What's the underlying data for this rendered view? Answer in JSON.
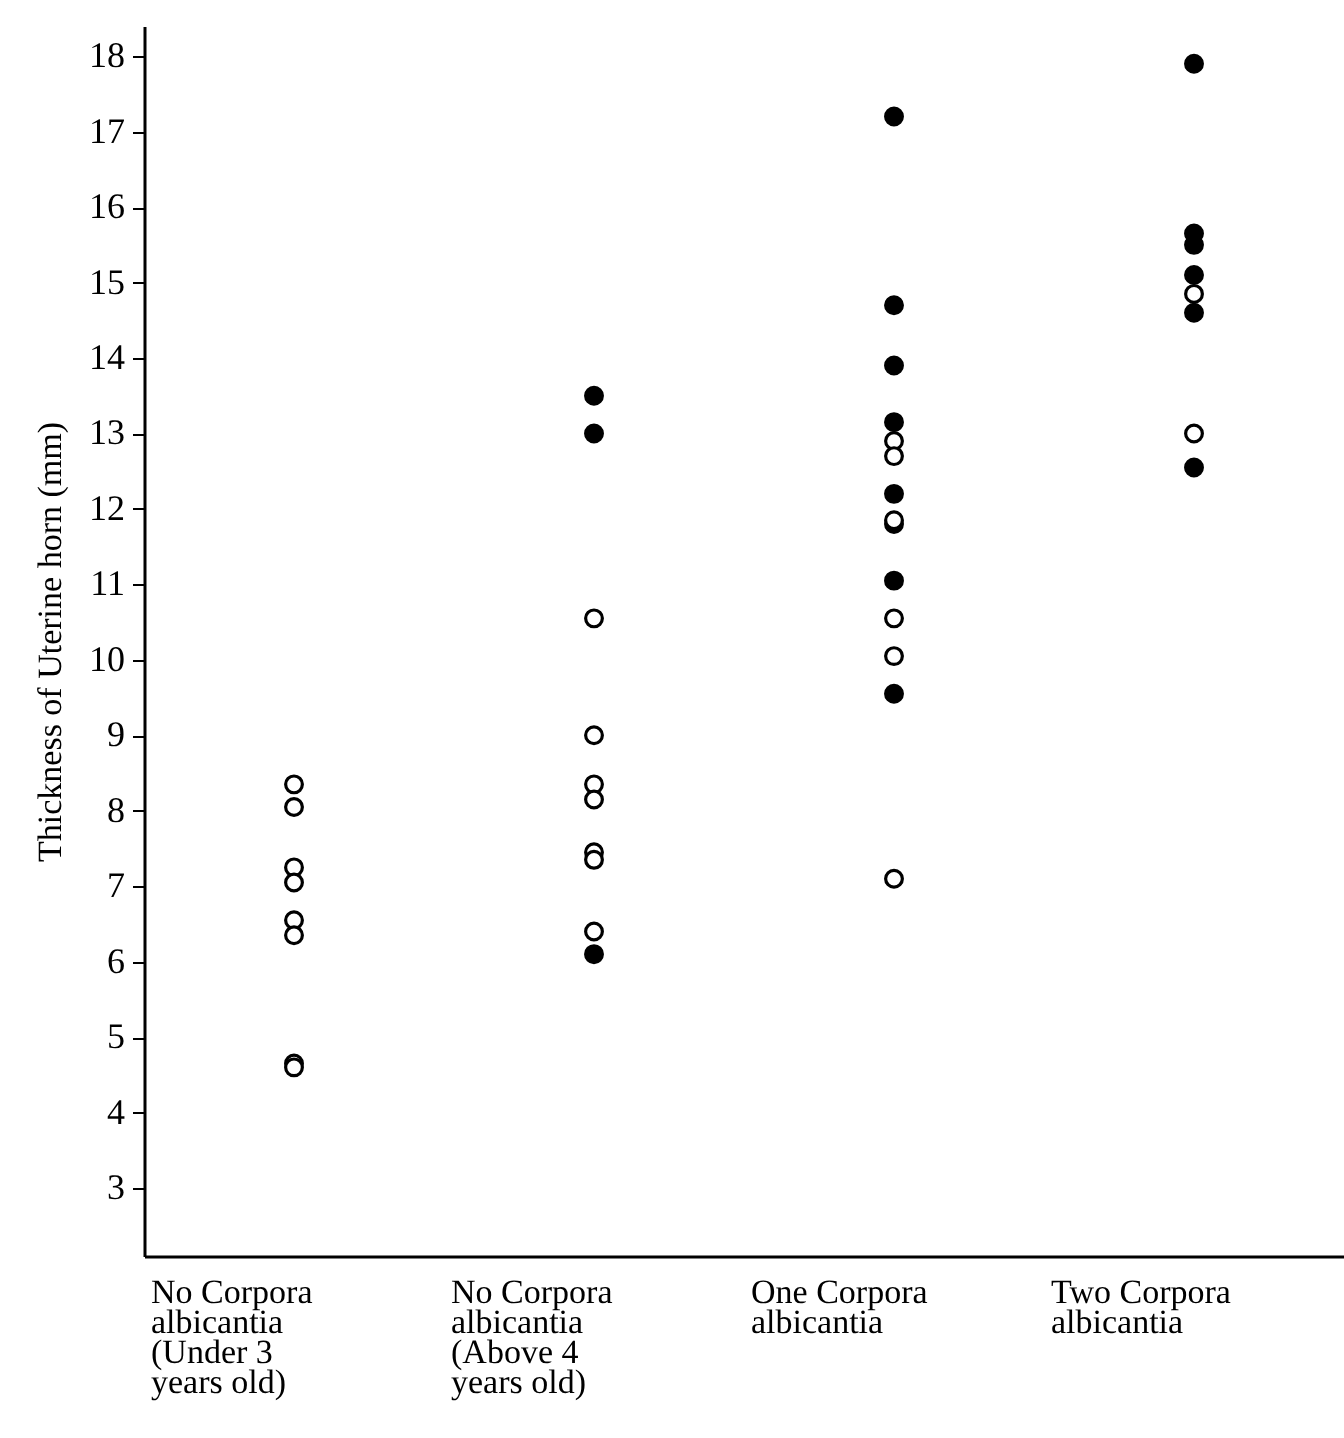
{
  "chart_data": {
    "type": "scatter",
    "ylabel": "Thickness of Uterine horn (mm)",
    "categories": [
      "No Corpora\nalbicantia\n(Under 3\nyears old)",
      "No Corpora\nalbicantia\n(Above 4\nyears old)",
      "One Corpora\nalbicantia",
      "Two Corpora\nalbicantia"
    ],
    "ylim": [
      2.1,
      18.4
    ],
    "yticks": [
      3,
      4,
      5,
      6,
      7,
      8,
      9,
      10,
      11,
      12,
      13,
      14,
      15,
      16,
      17,
      18
    ],
    "grid": false,
    "marker": "circle",
    "series": [
      {
        "color": "#000000",
        "x": [
          "No Corpora\nalbicantia\n(Above 4\nyears old)",
          "No Corpora\nalbicantia\n(Above 4\nyears old)",
          "No Corpora\nalbicantia\n(Above 4\nyears old)",
          "One Corpora\nalbicantia",
          "One Corpora\nalbicantia",
          "One Corpora\nalbicantia",
          "One Corpora\nalbicantia",
          "One Corpora\nalbicantia",
          "One Corpora\nalbicantia",
          "One Corpora\nalbicantia",
          "One Corpora\nalbicantia",
          "Two Corpora\nalbicantia",
          "Two Corpora\nalbicantia",
          "Two Corpora\nalbicantia",
          "Two Corpora\nalbicantia",
          "Two Corpora\nalbicantia",
          "Two Corpora\nalbicantia"
        ],
        "values": [
          13.5,
          13.0,
          6.1,
          17.2,
          14.7,
          13.9,
          13.15,
          12.2,
          11.8,
          11.05,
          9.55,
          17.9,
          15.65,
          15.5,
          15.1,
          14.6,
          12.55
        ]
      },
      {
        "color": "#ffffff",
        "x": [
          "No Corpora\nalbicantia\n(Under 3\nyears old)",
          "No Corpora\nalbicantia\n(Under 3\nyears old)",
          "No Corpora\nalbicantia\n(Under 3\nyears old)",
          "No Corpora\nalbicantia\n(Under 3\nyears old)",
          "No Corpora\nalbicantia\n(Under 3\nyears old)",
          "No Corpora\nalbicantia\n(Under 3\nyears old)",
          "No Corpora\nalbicantia\n(Under 3\nyears old)",
          "No Corpora\nalbicantia\n(Under 3\nyears old)",
          "No Corpora\nalbicantia\n(Above 4\nyears old)",
          "No Corpora\nalbicantia\n(Above 4\nyears old)",
          "No Corpora\nalbicantia\n(Above 4\nyears old)",
          "No Corpora\nalbicantia\n(Above 4\nyears old)",
          "No Corpora\nalbicantia\n(Above 4\nyears old)",
          "No Corpora\nalbicantia\n(Above 4\nyears old)",
          "No Corpora\nalbicantia\n(Above 4\nyears old)",
          "One Corpora\nalbicantia",
          "One Corpora\nalbicantia",
          "One Corpora\nalbicantia",
          "One Corpora\nalbicantia",
          "One Corpora\nalbicantia",
          "One Corpora\nalbicantia",
          "Two Corpora\nalbicantia",
          "Two Corpora\nalbicantia"
        ],
        "values": [
          8.35,
          8.05,
          7.25,
          7.05,
          6.55,
          6.35,
          4.65,
          4.6,
          9.0,
          10.55,
          8.35,
          8.15,
          7.45,
          7.35,
          6.4,
          12.9,
          12.7,
          11.85,
          10.55,
          10.05,
          7.1,
          14.85,
          13.0
        ]
      }
    ]
  }
}
